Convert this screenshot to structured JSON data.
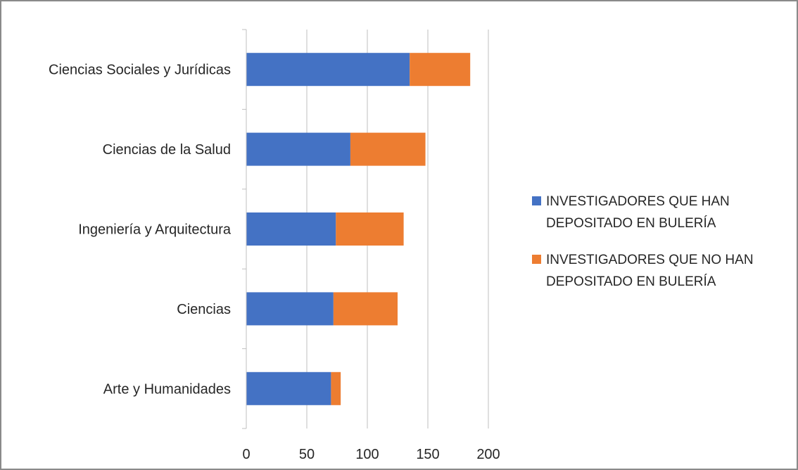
{
  "chart_data": {
    "type": "bar",
    "orientation": "horizontal",
    "stacked": true,
    "categories": [
      "Ciencias Sociales y Jurídicas",
      "Ciencias de la Salud",
      "Ingeniería y Arquitectura",
      "Ciencias",
      "Arte y Humanidades"
    ],
    "series": [
      {
        "name": "INVESTIGADORES QUE HAN DEPOSITADO EN BULERÍA",
        "name_lines": [
          "INVESTIGADORES QUE HAN",
          "DEPOSITADO EN BULERÍA"
        ],
        "color": "#4472C4",
        "values": [
          135,
          86,
          74,
          72,
          70
        ]
      },
      {
        "name": "INVESTIGADORES QUE NO HAN DEPOSITADO EN BULERÍA",
        "name_lines": [
          "INVESTIGADORES QUE NO HAN",
          "DEPOSITADO EN BULERÍA"
        ],
        "color": "#ED7D31",
        "values": [
          50,
          62,
          56,
          53,
          8
        ]
      }
    ],
    "xlim": [
      0,
      200
    ],
    "xticks": [
      "0",
      "50",
      "100",
      "150",
      "200"
    ],
    "grid": "vertical",
    "legend_position": "right",
    "title": "",
    "xlabel": "",
    "ylabel": ""
  }
}
